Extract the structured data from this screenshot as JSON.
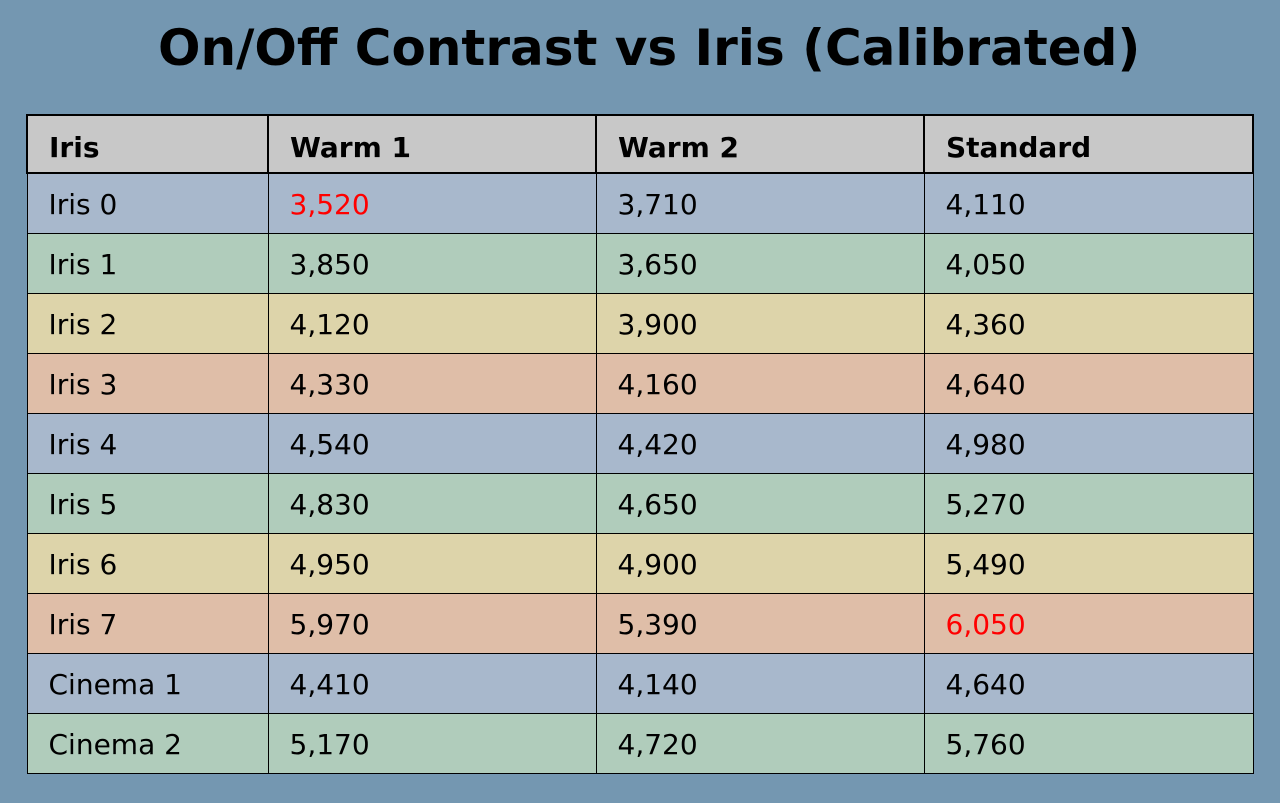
{
  "chart_data": {
    "type": "table",
    "title": "On/Off Contrast vs Iris (Calibrated)",
    "columns": [
      "Iris",
      "Warm 1",
      "Warm 2",
      "Standard"
    ],
    "rows": [
      {
        "label": "Iris 0",
        "values": [
          "3,520",
          "3,710",
          "4,110"
        ],
        "highlight": [
          true,
          false,
          false
        ]
      },
      {
        "label": "Iris 1",
        "values": [
          "3,850",
          "3,650",
          "4,050"
        ],
        "highlight": [
          false,
          false,
          false
        ]
      },
      {
        "label": "Iris 2",
        "values": [
          "4,120",
          "3,900",
          "4,360"
        ],
        "highlight": [
          false,
          false,
          false
        ]
      },
      {
        "label": "Iris 3",
        "values": [
          "4,330",
          "4,160",
          "4,640"
        ],
        "highlight": [
          false,
          false,
          false
        ]
      },
      {
        "label": "Iris 4",
        "values": [
          "4,540",
          "4,420",
          "4,980"
        ],
        "highlight": [
          false,
          false,
          false
        ]
      },
      {
        "label": "Iris 5",
        "values": [
          "4,830",
          "4,650",
          "5,270"
        ],
        "highlight": [
          false,
          false,
          false
        ]
      },
      {
        "label": "Iris 6",
        "values": [
          "4,950",
          "4,900",
          "5,490"
        ],
        "highlight": [
          false,
          false,
          false
        ]
      },
      {
        "label": "Iris 7",
        "values": [
          "5,970",
          "5,390",
          "6,050"
        ],
        "highlight": [
          false,
          false,
          true
        ]
      },
      {
        "label": "Cinema 1",
        "values": [
          "4,410",
          "4,140",
          "4,640"
        ],
        "highlight": [
          false,
          false,
          false
        ]
      },
      {
        "label": "Cinema 2",
        "values": [
          "5,170",
          "4,720",
          "5,760"
        ],
        "highlight": [
          false,
          false,
          false
        ]
      }
    ],
    "row_colors": [
      "#a8b8cc",
      "#b0ccbb",
      "#ddd4aa",
      "#dfbea8"
    ],
    "header_color": "#c8c8c8",
    "highlight_color": "#ff0000"
  },
  "colors": {
    "background": "#7497b1",
    "text": "#000000"
  }
}
